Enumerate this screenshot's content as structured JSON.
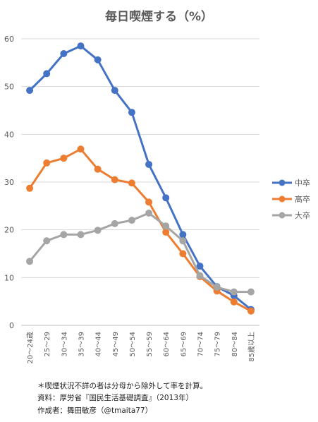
{
  "chart_data": {
    "type": "line",
    "title": "毎日喫煙する（%）",
    "xlabel": "",
    "ylabel": "",
    "ylim": [
      0,
      60
    ],
    "yticks": [
      "0",
      "10",
      "20",
      "30",
      "40",
      "50",
      "60"
    ],
    "grid": true,
    "legend_position": "right",
    "categories": [
      "20～24歳",
      "25～29",
      "30～34",
      "35～39",
      "40～44",
      "45～49",
      "50～54",
      "55～59",
      "60～64",
      "65～69",
      "70～74",
      "75～79",
      "80～84",
      "85歳以上"
    ],
    "series": [
      {
        "name": "中卒",
        "color": "#4472C4",
        "values": [
          49.2,
          52.7,
          56.9,
          58.5,
          55.6,
          49.2,
          44.6,
          33.7,
          26.7,
          19.0,
          12.4,
          8.1,
          6.2,
          3.3
        ]
      },
      {
        "name": "高卒",
        "color": "#ED7D31",
        "values": [
          28.7,
          34.0,
          35.0,
          36.9,
          32.7,
          30.5,
          29.8,
          25.8,
          19.5,
          15.0,
          10.2,
          7.2,
          4.9,
          3.0
        ]
      },
      {
        "name": "大卒",
        "color": "#A5A5A5",
        "values": [
          13.4,
          17.7,
          19.0,
          19.0,
          19.9,
          21.3,
          22.0,
          23.5,
          20.8,
          17.7,
          10.4,
          8.0,
          7.0,
          7.0
        ]
      }
    ]
  },
  "notes": [
    "＊喫煙状況不詳の者は分母から除外して率を計算。",
    "資料：厚労省『国民生活基礎調査』（2013年）",
    "作成者：舞田敏彦（@tmaita77）"
  ]
}
